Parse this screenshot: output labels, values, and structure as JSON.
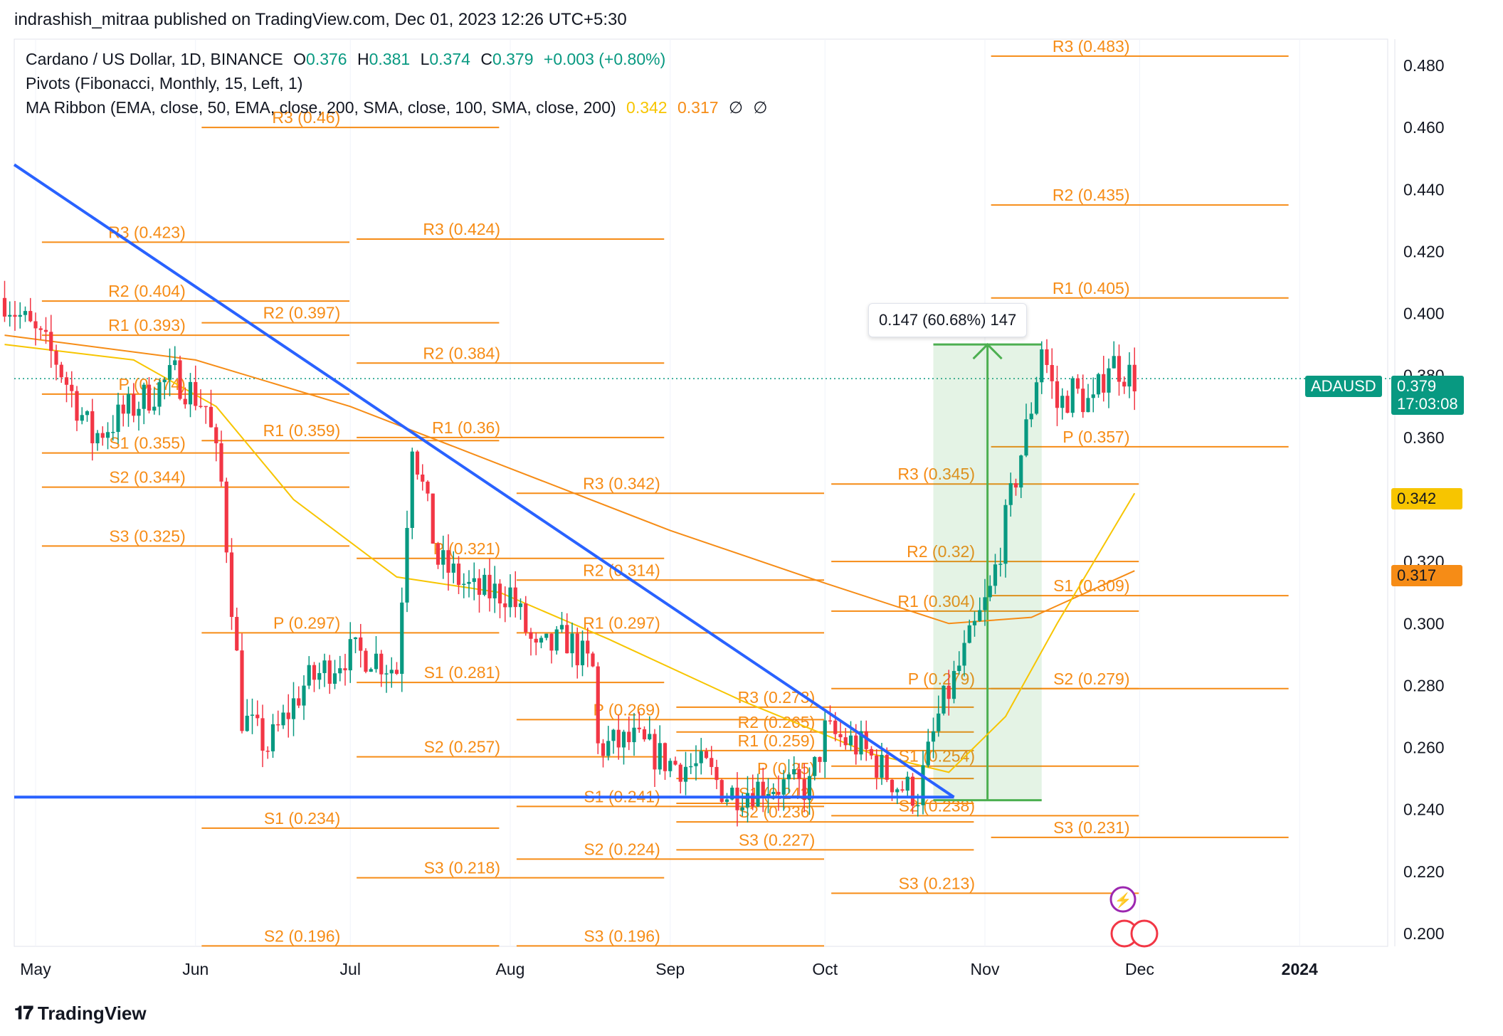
{
  "header": {
    "published": "indrashish_mitraa published on TradingView.com, Dec 01, 2023 12:26 UTC+5:30"
  },
  "legend": {
    "symbol": "Cardano / US Dollar, 1D, BINANCE",
    "o_label": "O",
    "o_val": "0.376",
    "h_label": "H",
    "h_val": "0.381",
    "l_label": "L",
    "l_val": "0.374",
    "c_label": "C",
    "c_val": "0.379",
    "change": "+0.003 (+0.80%)",
    "pivots": "Pivots (Fibonacci, Monthly, 15, Left, 1)",
    "ma_ribbon": "MA Ribbon (EMA, close, 50, EMA, close, 200, SMA, close, 100, SMA, close, 200)",
    "ma_val1": "0.342",
    "ma_val2": "0.317",
    "ma_na1": "∅",
    "ma_na2": "∅"
  },
  "price_tag": {
    "symbol": "ADAUSD",
    "price": "0.379",
    "countdown": "17:03:08"
  },
  "ma_tags": {
    "ema50": "0.342",
    "ema200": "0.317"
  },
  "measure": {
    "label": "0.147 (60.68%) 147"
  },
  "brand": {
    "name": "TradingView"
  },
  "colors": {
    "up": "#089981",
    "down": "#f23645",
    "pivot": "#f68c16",
    "ema50": "#f7c500",
    "ema200": "#f68c16",
    "trendline": "#2962ff",
    "measure": "#4caf50"
  },
  "chart_data": {
    "type": "candlestick",
    "symbol": "ADAUSD",
    "ylim": [
      0.195,
      0.49
    ],
    "y_ticks": [
      "0.480",
      "0.460",
      "0.440",
      "0.420",
      "0.400",
      "0.380",
      "0.360",
      "0.340",
      "0.320",
      "0.300",
      "0.280",
      "0.260",
      "0.240",
      "0.220",
      "0.200"
    ],
    "x_ticks": [
      "May",
      "Jun",
      "Jul",
      "Aug",
      "Sep",
      "Oct",
      "Nov",
      "Dec",
      "2024"
    ],
    "price_path": [
      [
        "2023-04-25",
        0.405
      ],
      [
        "2023-05-05",
        0.385
      ],
      [
        "2023-05-12",
        0.36
      ],
      [
        "2023-05-20",
        0.37
      ],
      [
        "2023-05-28",
        0.38
      ],
      [
        "2023-06-03",
        0.37
      ],
      [
        "2023-06-06",
        0.345
      ],
      [
        "2023-06-10",
        0.27
      ],
      [
        "2023-06-15",
        0.26
      ],
      [
        "2023-06-22",
        0.28
      ],
      [
        "2023-06-30",
        0.29
      ],
      [
        "2023-07-05",
        0.29
      ],
      [
        "2023-07-10",
        0.285
      ],
      [
        "2023-07-13",
        0.36
      ],
      [
        "2023-07-18",
        0.32
      ],
      [
        "2023-07-25",
        0.31
      ],
      [
        "2023-08-01",
        0.31
      ],
      [
        "2023-08-06",
        0.29
      ],
      [
        "2023-08-12",
        0.295
      ],
      [
        "2023-08-17",
        0.285
      ],
      [
        "2023-08-18",
        0.26
      ],
      [
        "2023-08-25",
        0.262
      ],
      [
        "2023-09-01",
        0.255
      ],
      [
        "2023-09-08",
        0.253
      ],
      [
        "2023-09-12",
        0.245
      ],
      [
        "2023-09-20",
        0.248
      ],
      [
        "2023-09-28",
        0.247
      ],
      [
        "2023-10-01",
        0.265
      ],
      [
        "2023-10-08",
        0.26
      ],
      [
        "2023-10-15",
        0.248
      ],
      [
        "2023-10-19",
        0.245
      ],
      [
        "2023-10-23",
        0.27
      ],
      [
        "2023-10-28",
        0.29
      ],
      [
        "2023-11-02",
        0.31
      ],
      [
        "2023-11-06",
        0.34
      ],
      [
        "2023-11-10",
        0.37
      ],
      [
        "2023-11-12",
        0.39
      ],
      [
        "2023-11-15",
        0.37
      ],
      [
        "2023-11-18",
        0.375
      ],
      [
        "2023-11-22",
        0.37
      ],
      [
        "2023-11-25",
        0.385
      ],
      [
        "2023-11-30",
        0.379
      ]
    ],
    "ema50_path": [
      [
        "2023-04-25",
        0.39
      ],
      [
        "2023-05-20",
        0.385
      ],
      [
        "2023-06-05",
        0.37
      ],
      [
        "2023-06-20",
        0.34
      ],
      [
        "2023-07-10",
        0.315
      ],
      [
        "2023-07-30",
        0.31
      ],
      [
        "2023-08-20",
        0.295
      ],
      [
        "2023-09-15",
        0.275
      ],
      [
        "2023-10-10",
        0.258
      ],
      [
        "2023-10-25",
        0.252
      ],
      [
        "2023-11-05",
        0.27
      ],
      [
        "2023-11-15",
        0.3
      ],
      [
        "2023-11-30",
        0.342
      ]
    ],
    "ema200_path": [
      [
        "2023-04-25",
        0.393
      ],
      [
        "2023-06-01",
        0.385
      ],
      [
        "2023-07-01",
        0.37
      ],
      [
        "2023-08-01",
        0.35
      ],
      [
        "2023-09-01",
        0.33
      ],
      [
        "2023-10-01",
        0.313
      ],
      [
        "2023-10-25",
        0.3
      ],
      [
        "2023-11-10",
        0.302
      ],
      [
        "2023-11-30",
        0.317
      ]
    ],
    "trendlines": [
      {
        "from": [
          "2023-04-25",
          0.448
        ],
        "to": [
          "2023-10-26",
          0.244
        ]
      },
      {
        "from": [
          "2023-04-25",
          0.244
        ],
        "to": [
          "2023-10-26",
          0.244
        ]
      }
    ],
    "measure": {
      "from": [
        "2023-10-22",
        0.243
      ],
      "to": [
        "2023-11-12",
        0.39
      ],
      "label": "0.147 (60.68%) 147"
    },
    "pivot_levels": [
      {
        "month": "2023-05",
        "levels": [
          [
            "R3",
            "0.423"
          ],
          [
            "R2",
            "0.404"
          ],
          [
            "R1",
            "0.393"
          ],
          [
            "P",
            "0.374"
          ],
          [
            "S1",
            "0.355"
          ],
          [
            "S2",
            "0.344"
          ],
          [
            "S3",
            "0.325"
          ]
        ]
      },
      {
        "month": "2023-06",
        "levels": [
          [
            "R3",
            "0.46"
          ],
          [
            "R2",
            "0.397"
          ],
          [
            "R1",
            "0.359"
          ],
          [
            "S1",
            "0.234"
          ],
          [
            "S2",
            "0.196"
          ],
          [
            "P",
            "0.297"
          ]
        ]
      },
      {
        "month": "2023-07",
        "levels": [
          [
            "R3",
            "0.424"
          ],
          [
            "R2",
            "0.384"
          ],
          [
            "R1",
            "0.36"
          ],
          [
            "P",
            "0.321"
          ],
          [
            "S1",
            "0.281"
          ],
          [
            "S2",
            "0.257"
          ],
          [
            "S3",
            "0.218"
          ]
        ]
      },
      {
        "month": "2023-08",
        "levels": [
          [
            "R3",
            "0.342"
          ],
          [
            "R2",
            "0.314"
          ],
          [
            "R1",
            "0.297"
          ],
          [
            "P",
            "0.269"
          ],
          [
            "S1",
            "0.241"
          ],
          [
            "S2",
            "0.224"
          ],
          [
            "S3",
            "0.196"
          ]
        ]
      },
      {
        "month": "2023-09",
        "levels": [
          [
            "R3",
            "0.273"
          ],
          [
            "R2",
            "0.265"
          ],
          [
            "R1",
            "0.259"
          ],
          [
            "P",
            "0.25"
          ],
          [
            "S1",
            "0.242"
          ],
          [
            "S2",
            "0.236"
          ],
          [
            "S3",
            "0.227"
          ]
        ]
      },
      {
        "month": "2023-10",
        "levels": [
          [
            "R3",
            "0.345"
          ],
          [
            "R2",
            "0.32"
          ],
          [
            "R1",
            "0.304"
          ],
          [
            "P",
            "0.279"
          ],
          [
            "S1",
            "0.254"
          ],
          [
            "S2",
            "0.238"
          ],
          [
            "S3",
            "0.213"
          ]
        ]
      },
      {
        "month": "2023-11",
        "levels": [
          [
            "R3",
            "0.483"
          ],
          [
            "R2",
            "0.435"
          ],
          [
            "R1",
            "0.405"
          ],
          [
            "P",
            "0.357"
          ],
          [
            "S1",
            "0.309"
          ],
          [
            "S2",
            "0.279"
          ],
          [
            "S3",
            "0.231"
          ]
        ]
      }
    ]
  }
}
